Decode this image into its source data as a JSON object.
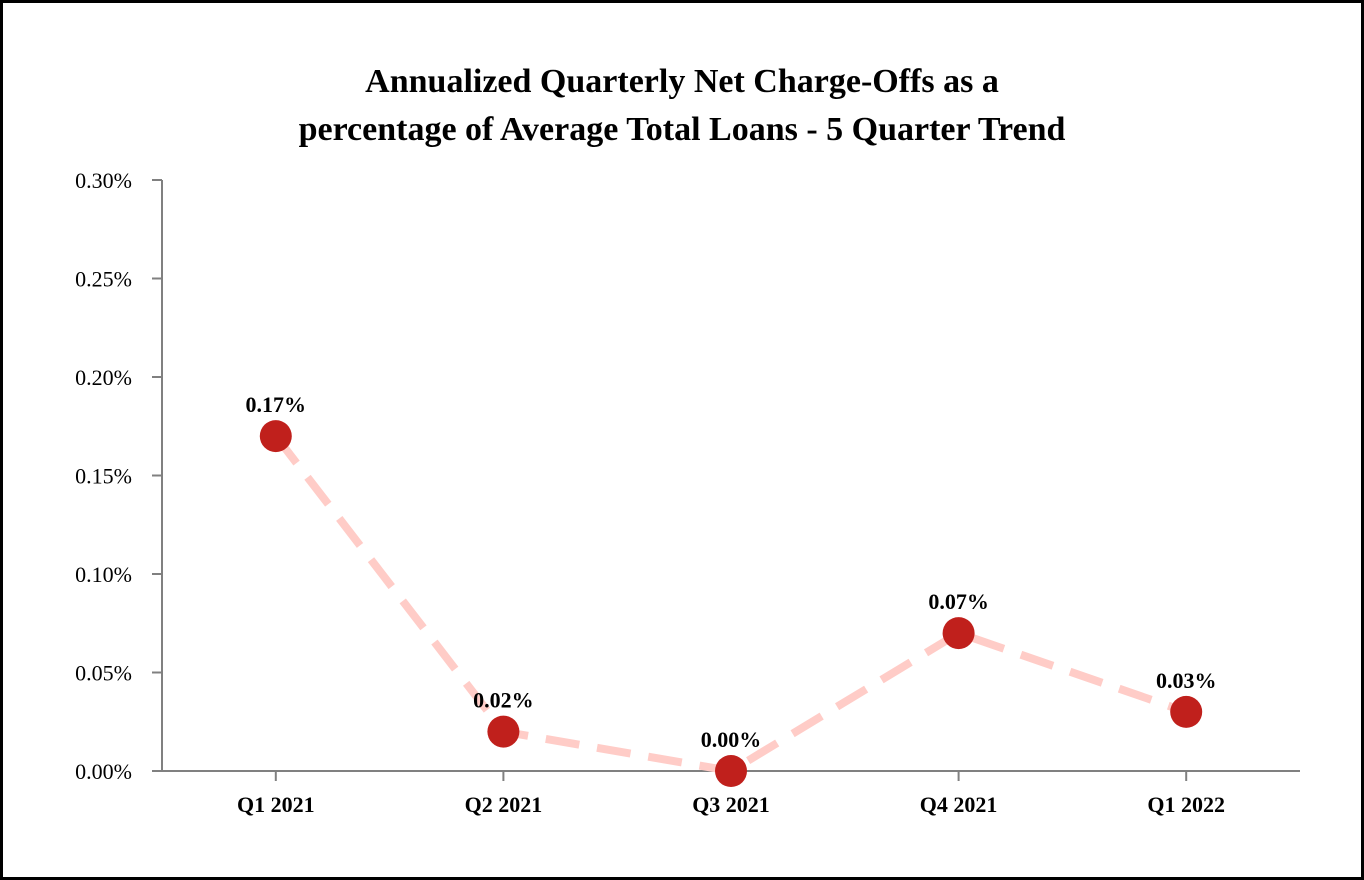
{
  "chart_data": {
    "type": "line",
    "title_lines": [
      "Annualized Quarterly Net Charge-Offs as a",
      "percentage of Average Total Loans - 5 Quarter Trend"
    ],
    "xlabel": "",
    "ylabel": "",
    "categories": [
      "Q1 2021",
      "Q2 2021",
      "Q3 2021",
      "Q4 2021",
      "Q1 2022"
    ],
    "series": [
      {
        "values": [
          0.17,
          0.02,
          0.0,
          0.07,
          0.03
        ],
        "data_labels": [
          "0.17%",
          "0.02%",
          "0.00%",
          "0.07%",
          "0.03%"
        ],
        "line_color": "#FFCCC7",
        "line_style": "dashed",
        "marker_color": "#C0201C",
        "marker": "circle"
      }
    ],
    "ylim": [
      0,
      0.3
    ],
    "y_ticks": [
      0,
      0.05,
      0.1,
      0.15,
      0.2,
      0.25,
      0.3
    ],
    "y_tick_labels": [
      "0.00%",
      "0.05%",
      "0.10%",
      "0.15%",
      "0.20%",
      "0.25%",
      "0.30%"
    ],
    "grid": false,
    "legend": "none",
    "axis_color": "#808080",
    "border_color": "#000000"
  }
}
